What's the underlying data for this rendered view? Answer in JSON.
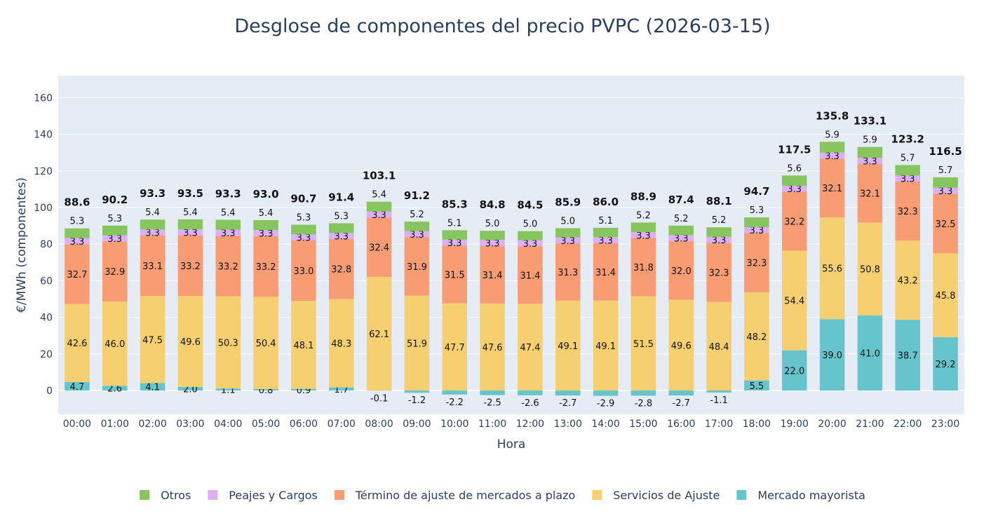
{
  "chart_data": {
    "type": "bar",
    "stacked": true,
    "title": "Desglose de componentes del precio PVPC (2026-03-15)",
    "xlabel": "Hora",
    "ylabel": "€/MWh (componentes)",
    "ylim": [
      -13,
      172
    ],
    "yticks": [
      0,
      20,
      40,
      60,
      80,
      100,
      120,
      140,
      160
    ],
    "grid": true,
    "legend_position": "bottom",
    "plot_bg": "#e5ecf6",
    "categories": [
      "00:00",
      "01:00",
      "02:00",
      "03:00",
      "04:00",
      "05:00",
      "06:00",
      "07:00",
      "08:00",
      "09:00",
      "10:00",
      "11:00",
      "12:00",
      "13:00",
      "14:00",
      "15:00",
      "16:00",
      "17:00",
      "18:00",
      "19:00",
      "20:00",
      "21:00",
      "22:00",
      "23:00"
    ],
    "series": [
      {
        "name": "Mercado mayorista",
        "color": "#66c5cc",
        "values": [
          4.7,
          2.6,
          4.1,
          2.0,
          1.1,
          0.8,
          0.9,
          1.7,
          -0.1,
          -1.2,
          -2.2,
          -2.5,
          -2.6,
          -2.7,
          -2.9,
          -2.8,
          -2.7,
          -1.1,
          5.5,
          22.0,
          39.0,
          41.0,
          38.7,
          29.2
        ]
      },
      {
        "name": "Servicios de Ajuste",
        "color": "#f6cf71",
        "values": [
          42.6,
          46.0,
          47.5,
          49.6,
          50.3,
          50.4,
          48.1,
          48.3,
          62.1,
          51.9,
          47.7,
          47.6,
          47.4,
          49.1,
          49.1,
          51.5,
          49.6,
          48.4,
          48.2,
          54.4,
          55.6,
          50.8,
          43.2,
          45.8
        ]
      },
      {
        "name": "Término de ajuste de mercados a plazo",
        "color": "#f89c74",
        "values": [
          32.7,
          32.9,
          33.1,
          33.2,
          33.2,
          33.2,
          33.0,
          32.8,
          32.4,
          31.9,
          31.5,
          31.4,
          31.4,
          31.3,
          31.4,
          31.8,
          32.0,
          32.3,
          32.3,
          32.2,
          32.1,
          32.1,
          32.3,
          32.5
        ]
      },
      {
        "name": "Peajes y Cargos",
        "color": "#dcb0f2",
        "values": [
          3.3,
          3.3,
          3.3,
          3.3,
          3.3,
          3.3,
          3.3,
          3.3,
          3.3,
          3.3,
          3.3,
          3.3,
          3.3,
          3.3,
          3.3,
          3.3,
          3.3,
          3.3,
          3.3,
          3.3,
          3.3,
          3.3,
          3.3,
          3.3
        ]
      },
      {
        "name": "Otros",
        "color": "#87c55f",
        "values": [
          5.3,
          5.3,
          5.4,
          5.4,
          5.4,
          5.4,
          5.3,
          5.3,
          5.4,
          5.2,
          5.1,
          5.0,
          5.0,
          5.0,
          5.1,
          5.2,
          5.2,
          5.2,
          5.3,
          5.6,
          5.9,
          5.9,
          5.7,
          5.7
        ]
      }
    ],
    "totals": [
      88.6,
      90.2,
      93.3,
      93.5,
      93.3,
      93.0,
      90.7,
      91.4,
      103.1,
      91.2,
      85.3,
      84.8,
      84.5,
      85.9,
      86.0,
      88.9,
      87.4,
      88.1,
      94.7,
      117.5,
      135.8,
      133.1,
      123.2,
      116.5
    ]
  }
}
